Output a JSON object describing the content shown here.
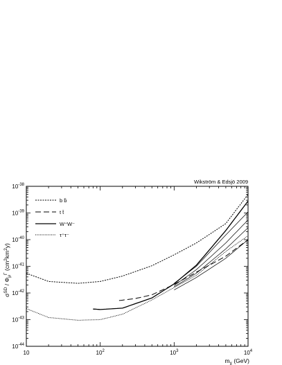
{
  "chart_data": {
    "type": "line",
    "title": "",
    "annotation": "Wikström & Edsjö 2009",
    "xlabel": "m_χ (GeV)",
    "ylabel": "σ^SD / Φ_μ^Γ (cm² km² y)",
    "xscale": "log",
    "yscale": "log",
    "xlim": [
      10,
      10000
    ],
    "ylim": [
      1e-44,
      1e-38
    ],
    "x_tick_labels": [
      {
        "value": 10,
        "base": "10",
        "exp": ""
      },
      {
        "value": 100,
        "base": "10",
        "exp": "2"
      },
      {
        "value": 1000,
        "base": "10",
        "exp": "3"
      },
      {
        "value": 10000,
        "base": "10",
        "exp": "4"
      }
    ],
    "y_tick_labels": [
      {
        "value": 1e-44,
        "base": "10",
        "exp": "-44"
      },
      {
        "value": 1e-43,
        "base": "10",
        "exp": "-43"
      },
      {
        "value": 1e-42,
        "base": "10",
        "exp": "-42"
      },
      {
        "value": 1e-41,
        "base": "10",
        "exp": "-41"
      },
      {
        "value": 1e-40,
        "base": "10",
        "exp": "-40"
      },
      {
        "value": 1e-39,
        "base": "10",
        "exp": "-39"
      },
      {
        "value": 1e-38,
        "base": "10",
        "exp": "-38"
      }
    ],
    "legend_position": "top-left",
    "grid": false,
    "series": [
      {
        "name": "b b̄",
        "style": "dotted-dense",
        "width": 1,
        "x": [
          10,
          20,
          50,
          100,
          200,
          500,
          1000,
          2000,
          5000,
          10000
        ],
        "y": [
          5.5e-42,
          2.7e-42,
          2.3e-42,
          2.7e-42,
          4.3e-42,
          1.05e-41,
          2.7e-41,
          7.5e-41,
          4e-40,
          5e-39
        ]
      },
      {
        "name": "t t̄",
        "style": "dashed",
        "width": 1,
        "x": [
          180,
          300,
          500,
          1000,
          2000,
          5000,
          10000
        ],
        "y": [
          5.2e-43,
          6.2e-43,
          8.5e-43,
          2.1e-42,
          6e-42,
          2.4e-41,
          1e-40
        ]
      },
      {
        "name": "W⁺W⁻",
        "style": "solid",
        "width": 1.3,
        "x": [
          80,
          100,
          200,
          500,
          1000,
          2000,
          5000,
          10000
        ],
        "y": [
          2.5e-43,
          2.4e-43,
          2.7e-43,
          6.5e-43,
          2.2e-42,
          1.1e-41,
          2.2e-40,
          2.8e-39
        ]
      },
      {
        "name": "τ⁺τ⁻",
        "style": "dotted",
        "width": 1,
        "x": [
          10,
          20,
          50,
          100,
          200,
          500,
          1000,
          2000,
          5000,
          10000
        ],
        "y": [
          2.6e-43,
          1.2e-43,
          9.5e-44,
          1e-43,
          1.6e-43,
          5.5e-43,
          1.6e-42,
          4.6e-42,
          3.6e-41,
          1.4e-40
        ]
      }
    ],
    "extra_curves": [
      {
        "x": [
          1000,
          2000,
          5000,
          10000
        ],
        "y": [
          2.3e-42,
          1e-41,
          1.5e-40,
          1.1e-39
        ]
      },
      {
        "x": [
          1000,
          2000,
          5000,
          10000
        ],
        "y": [
          1.9e-42,
          7.5e-42,
          7.5e-41,
          5.5e-40
        ]
      },
      {
        "x": [
          1000,
          2000,
          5000,
          10000
        ],
        "y": [
          1.7e-42,
          5.5e-42,
          4.5e-41,
          2.8e-40
        ]
      },
      {
        "x": [
          1000,
          2000,
          5000,
          10000
        ],
        "y": [
          1.3e-42,
          3.8e-42,
          2e-41,
          1e-40
        ]
      }
    ]
  }
}
